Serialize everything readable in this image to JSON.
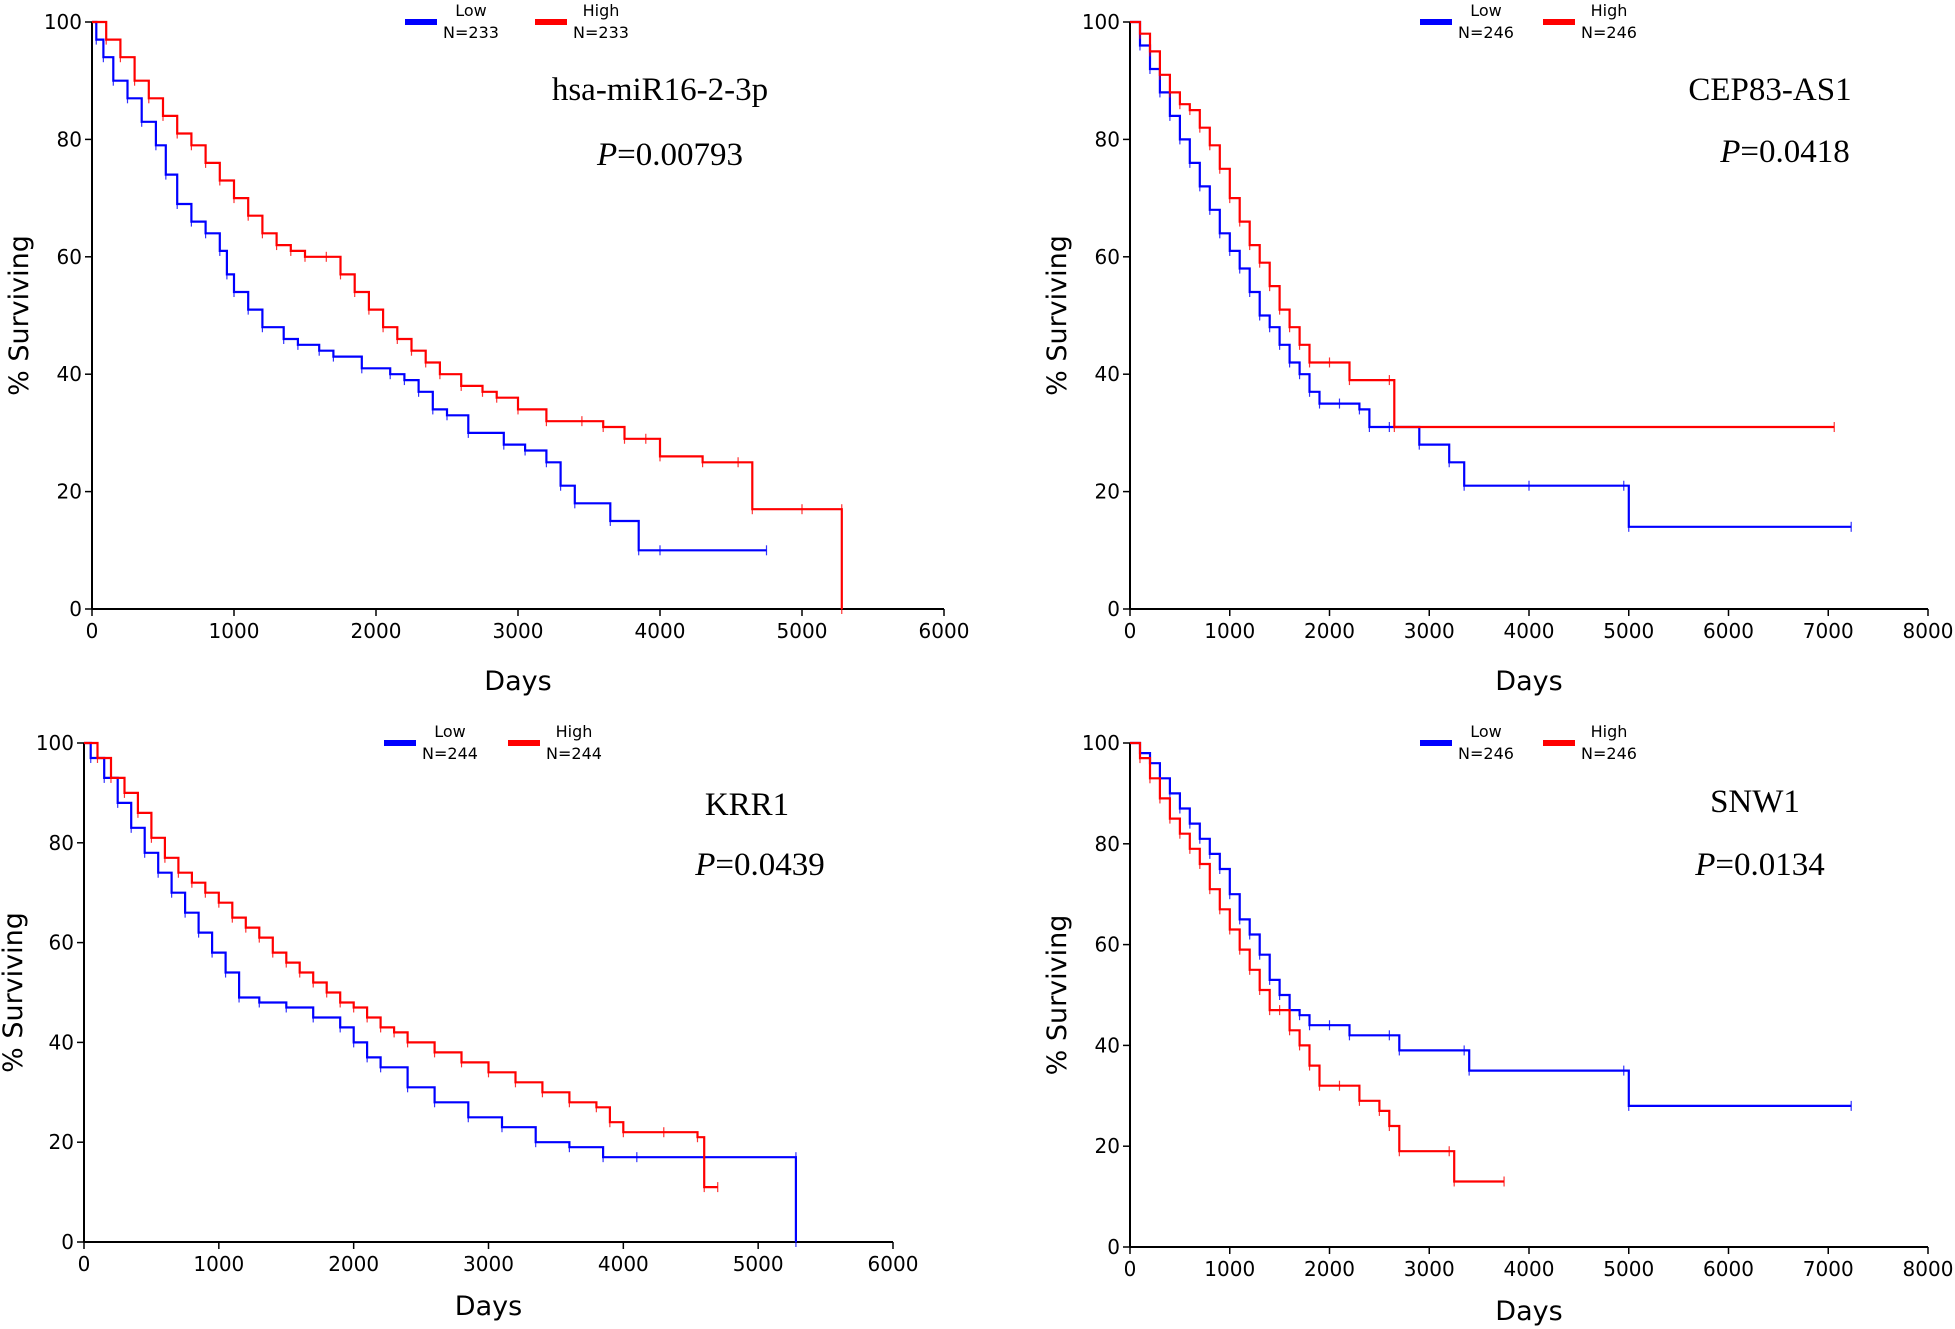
{
  "colors": {
    "low": "#0000ff",
    "high": "#ff0000",
    "axis": "#000000"
  },
  "chart_data": [
    {
      "type": "line",
      "title": "hsa-miR16-2-3p",
      "pvalue_label": "P",
      "pvalue": "=0.00793",
      "xlabel": "Days",
      "ylabel": "% Surviving",
      "xlim": [
        0,
        6000
      ],
      "ylim": [
        0,
        100
      ],
      "xticks": [
        "0",
        "1000",
        "2000",
        "3000",
        "4000",
        "5000",
        "6000"
      ],
      "yticks": [
        "0",
        "20",
        "40",
        "60",
        "80",
        "100"
      ],
      "legend_position": "top",
      "series": [
        {
          "name": "Low",
          "n_label": "N=233",
          "x": [
            0,
            30,
            80,
            150,
            250,
            350,
            450,
            520,
            600,
            700,
            800,
            900,
            950,
            1000,
            1100,
            1200,
            1350,
            1450,
            1600,
            1700,
            1900,
            2100,
            2200,
            2300,
            2400,
            2500,
            2650,
            2900,
            3050,
            3200,
            3300,
            3400,
            3650,
            3850,
            4000,
            4750
          ],
          "y": [
            100,
            97,
            94,
            90,
            87,
            83,
            79,
            74,
            69,
            66,
            64,
            61,
            57,
            54,
            51,
            48,
            46,
            45,
            44,
            43,
            41,
            40,
            39,
            37,
            34,
            33,
            30,
            28,
            27,
            25,
            21,
            18,
            15,
            10,
            10,
            10
          ]
        },
        {
          "name": "High",
          "n_label": "N=233",
          "x": [
            0,
            100,
            200,
            300,
            400,
            500,
            600,
            700,
            800,
            900,
            1000,
            1100,
            1200,
            1300,
            1400,
            1500,
            1650,
            1750,
            1850,
            1950,
            2050,
            2150,
            2250,
            2350,
            2450,
            2600,
            2750,
            2850,
            3000,
            3200,
            3450,
            3600,
            3750,
            3900,
            4000,
            4300,
            4550,
            4650,
            5000,
            5280,
            5280
          ],
          "y": [
            100,
            97,
            94,
            90,
            87,
            84,
            81,
            79,
            76,
            73,
            70,
            67,
            64,
            62,
            61,
            60,
            60,
            57,
            54,
            51,
            48,
            46,
            44,
            42,
            40,
            38,
            37,
            36,
            34,
            32,
            32,
            31,
            29,
            29,
            26,
            25,
            25,
            17,
            17,
            17,
            0
          ]
        }
      ]
    },
    {
      "type": "line",
      "title": "CEP83-AS1",
      "pvalue_label": "P",
      "pvalue": "=0.0418",
      "xlabel": "Days",
      "ylabel": "% Surviving",
      "xlim": [
        0,
        8000
      ],
      "ylim": [
        0,
        100
      ],
      "xticks": [
        "0",
        "1000",
        "2000",
        "3000",
        "4000",
        "5000",
        "6000",
        "7000",
        "8000"
      ],
      "yticks": [
        "0",
        "20",
        "40",
        "60",
        "80",
        "100"
      ],
      "legend_position": "top",
      "series": [
        {
          "name": "Low",
          "n_label": "N=246",
          "x": [
            0,
            100,
            200,
            300,
            400,
            500,
            600,
            700,
            800,
            900,
            1000,
            1100,
            1200,
            1300,
            1400,
            1500,
            1600,
            1700,
            1800,
            1900,
            2100,
            2300,
            2400,
            2600,
            2900,
            3200,
            3350,
            4000,
            4950,
            5000,
            7230
          ],
          "y": [
            100,
            96,
            92,
            88,
            84,
            80,
            76,
            72,
            68,
            64,
            61,
            58,
            54,
            50,
            48,
            45,
            42,
            40,
            37,
            35,
            35,
            34,
            31,
            31,
            28,
            25,
            21,
            21,
            21,
            14,
            14
          ]
        },
        {
          "name": "High",
          "n_label": "N=246",
          "x": [
            0,
            100,
            200,
            300,
            400,
            500,
            600,
            700,
            800,
            900,
            1000,
            1100,
            1200,
            1300,
            1400,
            1500,
            1600,
            1700,
            1800,
            2000,
            2200,
            2600,
            2650,
            7060
          ],
          "y": [
            100,
            98,
            95,
            91,
            88,
            86,
            85,
            82,
            79,
            75,
            70,
            66,
            62,
            59,
            55,
            51,
            48,
            45,
            42,
            42,
            39,
            39,
            31,
            31
          ]
        }
      ]
    },
    {
      "type": "line",
      "title": "KRR1",
      "pvalue_label": "P",
      "pvalue": "=0.0439",
      "xlabel": "Days",
      "ylabel": "% Surviving",
      "xlim": [
        0,
        6000
      ],
      "ylim": [
        0,
        100
      ],
      "xticks": [
        "0",
        "1000",
        "2000",
        "3000",
        "4000",
        "5000",
        "6000"
      ],
      "yticks": [
        "0",
        "20",
        "40",
        "60",
        "80",
        "100"
      ],
      "legend_position": "top",
      "series": [
        {
          "name": "Low",
          "n_label": "N=244",
          "x": [
            0,
            50,
            150,
            250,
            350,
            450,
            550,
            650,
            750,
            850,
            950,
            1050,
            1150,
            1300,
            1500,
            1700,
            1900,
            2000,
            2100,
            2200,
            2400,
            2600,
            2850,
            3100,
            3350,
            3600,
            3850,
            4100,
            5280,
            5280
          ],
          "y": [
            100,
            97,
            93,
            88,
            83,
            78,
            74,
            70,
            66,
            62,
            58,
            54,
            49,
            48,
            47,
            45,
            43,
            40,
            37,
            35,
            31,
            28,
            25,
            23,
            20,
            19,
            17,
            17,
            17,
            0
          ]
        },
        {
          "name": "High",
          "n_label": "N=244",
          "x": [
            0,
            100,
            200,
            300,
            400,
            500,
            600,
            700,
            800,
            900,
            1000,
            1100,
            1200,
            1300,
            1400,
            1500,
            1600,
            1700,
            1800,
            1900,
            2000,
            2100,
            2200,
            2300,
            2400,
            2600,
            2800,
            3000,
            3200,
            3400,
            3600,
            3800,
            3900,
            4000,
            4300,
            4550,
            4600,
            4700
          ],
          "y": [
            100,
            97,
            93,
            90,
            86,
            81,
            77,
            74,
            72,
            70,
            68,
            65,
            63,
            61,
            58,
            56,
            54,
            52,
            50,
            48,
            47,
            45,
            43,
            42,
            40,
            38,
            36,
            34,
            32,
            30,
            28,
            27,
            24,
            22,
            22,
            21,
            11,
            11
          ]
        }
      ]
    },
    {
      "type": "line",
      "title": "SNW1",
      "pvalue_label": "P",
      "pvalue": "=0.0134",
      "xlabel": "Days",
      "ylabel": "% Surviving",
      "xlim": [
        0,
        8000
      ],
      "ylim": [
        0,
        100
      ],
      "xticks": [
        "0",
        "1000",
        "2000",
        "3000",
        "4000",
        "5000",
        "6000",
        "7000",
        "8000"
      ],
      "yticks": [
        "0",
        "20",
        "40",
        "60",
        "80",
        "100"
      ],
      "legend_position": "top",
      "series": [
        {
          "name": "Low",
          "n_label": "N=246",
          "x": [
            0,
            100,
            200,
            300,
            400,
            500,
            600,
            700,
            800,
            900,
            1000,
            1100,
            1200,
            1300,
            1400,
            1500,
            1600,
            1700,
            1800,
            2000,
            2200,
            2600,
            2700,
            3350,
            3400,
            4950,
            5000,
            7230
          ],
          "y": [
            100,
            98,
            96,
            93,
            90,
            87,
            84,
            81,
            78,
            75,
            70,
            65,
            62,
            58,
            53,
            50,
            47,
            46,
            44,
            44,
            42,
            42,
            39,
            39,
            35,
            35,
            28,
            28
          ]
        },
        {
          "name": "High",
          "n_label": "N=246",
          "x": [
            0,
            100,
            200,
            300,
            400,
            500,
            600,
            700,
            800,
            900,
            1000,
            1100,
            1200,
            1300,
            1400,
            1500,
            1600,
            1700,
            1800,
            1900,
            2100,
            2300,
            2500,
            2600,
            2700,
            3200,
            3250,
            3750
          ],
          "y": [
            100,
            97,
            93,
            89,
            85,
            82,
            79,
            76,
            71,
            67,
            63,
            59,
            55,
            51,
            47,
            47,
            43,
            40,
            36,
            32,
            32,
            29,
            27,
            24,
            19,
            19,
            13,
            13
          ]
        }
      ]
    }
  ]
}
